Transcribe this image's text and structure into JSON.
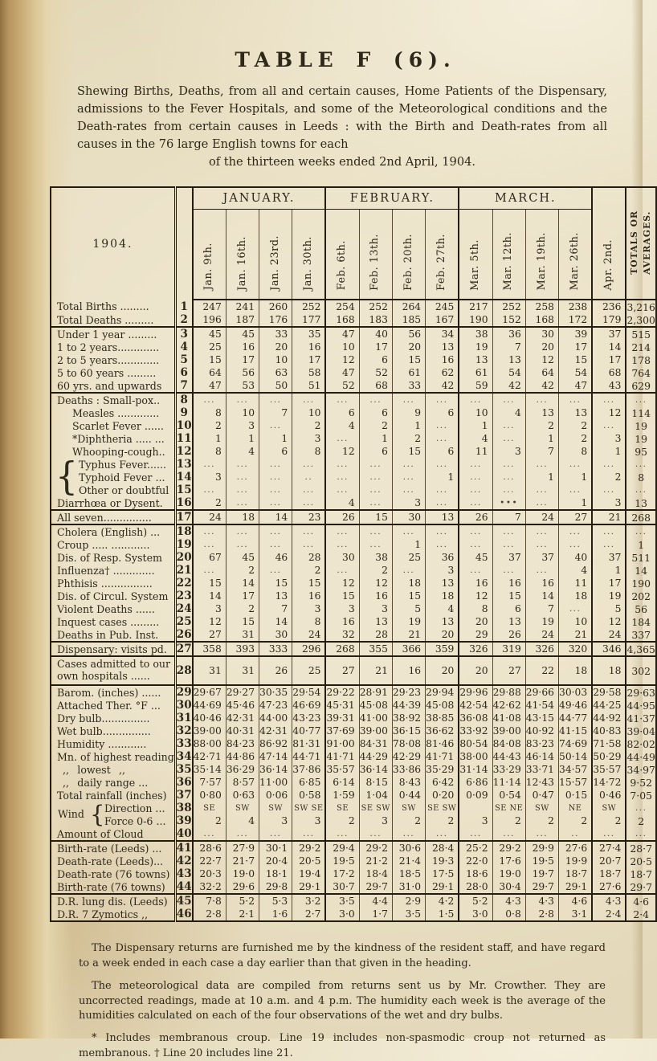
{
  "page": {
    "title": "TABLE F (6).",
    "intro_main": "Shewing Births, Deaths, from all and certain causes, Home Patients of the Dispensary, admissions to the Fever Hospitals, and some of the Meteorological conditions and the Death-rates from certain causes in Leeds : with the Birth and Death-rates from all causes in the 76 large English towns for each",
    "intro_last": "of the thirteen weeks ended 2nd April, 1904.",
    "footnotes": [
      "The Dispensary returns are furnished me by the kindness of the resident staff, and have regard to a week ended in each case a day earlier than that given in the heading.",
      "The meteorological data are compiled from returns sent us by Mr. Crowther.  They are uncorrected readings, made at 10 a.m. and 4 p.m.  The humidity each week is the average of the humidities calculated on each of the four observations of the wet and dry bulbs.",
      "* Includes membranous croup.  Line 19 includes non-spasmodic croup not returned as membranous.  † Line 20 includes line 21."
    ]
  },
  "table": {
    "year_label": "1904.",
    "wind_label": "Wind",
    "month_groups": [
      {
        "label": "JANUARY."
      },
      {
        "label": "FEBRUARY."
      },
      {
        "label": "MARCH."
      }
    ],
    "col_headers": [
      "Jan. 9th.",
      "Jan. 16th.",
      "Jan. 23rd.",
      "Jan. 30th.",
      "Feb. 6th.",
      "Feb. 13th.",
      "Feb. 20th.",
      "Feb. 27th.",
      "Mar. 5th.",
      "Mar. 12th.",
      "Mar. 19th.",
      "Mar. 26th.",
      "Apr. 2nd."
    ],
    "totals_header": "TOTALS OR\nAVERAGES.",
    "rows": [
      {
        "n": "1",
        "label": "Total Births .........",
        "v": [
          "247",
          "241",
          "260",
          "252",
          "254",
          "252",
          "264",
          "245",
          "217",
          "252",
          "258",
          "238",
          "236",
          "3,216"
        ]
      },
      {
        "n": "2",
        "label": "Total Deaths .........",
        "v": [
          "196",
          "187",
          "176",
          "177",
          "168",
          "183",
          "185",
          "167",
          "190",
          "152",
          "168",
          "172",
          "179",
          "2,300"
        ]
      },
      {
        "n": "3",
        "sep": true,
        "label": "Under 1 year .........",
        "v": [
          "45",
          "45",
          "33",
          "35",
          "47",
          "40",
          "56",
          "34",
          "38",
          "36",
          "30",
          "39",
          "37",
          "515"
        ]
      },
      {
        "n": "4",
        "label": "1 to 2 years.............",
        "v": [
          "25",
          "16",
          "20",
          "16",
          "10",
          "17",
          "20",
          "13",
          "19",
          "7",
          "20",
          "17",
          "14",
          "214"
        ]
      },
      {
        "n": "5",
        "label": "2 to 5 years.............",
        "v": [
          "15",
          "17",
          "10",
          "17",
          "12",
          "6",
          "15",
          "16",
          "13",
          "13",
          "12",
          "15",
          "17",
          "178"
        ]
      },
      {
        "n": "6",
        "label": "5 to 60 years .........",
        "v": [
          "64",
          "56",
          "63",
          "58",
          "47",
          "52",
          "61",
          "62",
          "61",
          "54",
          "64",
          "54",
          "68",
          "764"
        ]
      },
      {
        "n": "7",
        "label": "60 yrs. and upwards",
        "v": [
          "47",
          "53",
          "50",
          "51",
          "52",
          "68",
          "33",
          "42",
          "59",
          "42",
          "42",
          "47",
          "43",
          "629"
        ]
      },
      {
        "n": "8",
        "sep": true,
        "label": "Deaths : Small-pox..",
        "v": [
          "...",
          "...",
          "...",
          "...",
          "...",
          "...",
          "...",
          "...",
          "...",
          "...",
          "...",
          "...",
          "...",
          "..."
        ]
      },
      {
        "n": "9",
        "ind": 1,
        "label": "Measles .............",
        "v": [
          "8",
          "10",
          "7",
          "10",
          "6",
          "6",
          "9",
          "6",
          "10",
          "4",
          "13",
          "13",
          "12",
          "114"
        ]
      },
      {
        "n": "10",
        "ind": 1,
        "label": "Scarlet Fever ......",
        "v": [
          "2",
          "3",
          "...",
          "2",
          "4",
          "2",
          "1",
          "...",
          "1",
          "...",
          "2",
          "2",
          "...",
          "19"
        ]
      },
      {
        "n": "11",
        "ind": 1,
        "label": "*Diphtheria ..... ...",
        "v": [
          "1",
          "1",
          "1",
          "3",
          "...",
          "1",
          "2",
          "...",
          "4",
          "...",
          "1",
          "2",
          "3",
          "19"
        ]
      },
      {
        "n": "12",
        "ind": 1,
        "label": "Whooping-cough..",
        "v": [
          "8",
          "4",
          "6",
          "8",
          "12",
          "6",
          "15",
          "6",
          "11",
          "3",
          "7",
          "8",
          "1",
          "95"
        ]
      },
      {
        "n": "13",
        "ind": 2,
        "brace3": true,
        "label": "Typhus Fever......",
        "v": [
          "...",
          "...",
          "...",
          "...",
          "...",
          "...",
          "...",
          "...",
          "...",
          "...",
          "...",
          "...",
          "...",
          "..."
        ]
      },
      {
        "n": "14",
        "ind": 2,
        "label": "Typhoid Fever ...",
        "v": [
          "3",
          "...",
          "...",
          "..",
          "...",
          "...",
          "...",
          "1",
          "...",
          "...",
          "1",
          "1",
          "2",
          "8"
        ]
      },
      {
        "n": "15",
        "ind": 2,
        "label": "Other or doubtful",
        "v": [
          "...",
          "...",
          "...",
          "...",
          "...",
          "...",
          "...",
          "...",
          "...",
          "...",
          "...",
          "...",
          "...",
          "..."
        ]
      },
      {
        "n": "16",
        "label": "Diarrhœa or Dysent.",
        "v": [
          "2",
          "...",
          "...",
          "...",
          "4",
          "...",
          "3",
          "...",
          "...",
          "•••",
          "...",
          "1",
          "3",
          "13"
        ]
      },
      {
        "n": "17",
        "sep": true,
        "label": "All seven...............",
        "v": [
          "24",
          "18",
          "14",
          "23",
          "26",
          "15",
          "30",
          "13",
          "26",
          "7",
          "24",
          "27",
          "21",
          "268"
        ]
      },
      {
        "n": "18",
        "sep": true,
        "label": "Cholera (English) ...",
        "v": [
          "...",
          "...",
          "...",
          "...",
          "...",
          "...",
          "...",
          "...",
          "...",
          "...",
          "...",
          "...",
          "...",
          "..."
        ]
      },
      {
        "n": "19",
        "label": "Croup ..... ............",
        "v": [
          "...",
          "...",
          "...",
          "...",
          "...",
          "...",
          "1",
          "...",
          "...",
          "...",
          "...",
          "...",
          "...",
          "1"
        ]
      },
      {
        "n": "20",
        "label": "Dis. of Resp. System",
        "v": [
          "67",
          "45",
          "46",
          "28",
          "30",
          "38",
          "25",
          "36",
          "45",
          "37",
          "37",
          "40",
          "37",
          "511"
        ]
      },
      {
        "n": "21",
        "label": "Influenza† .............",
        "v": [
          "...",
          "2",
          "...",
          "2",
          "...",
          "2",
          "...",
          "3",
          "...",
          "...",
          "...",
          "4",
          "1",
          "14"
        ]
      },
      {
        "n": "22",
        "label": "Phthisis ................",
        "v": [
          "15",
          "14",
          "15",
          "15",
          "12",
          "12",
          "18",
          "13",
          "16",
          "16",
          "16",
          "11",
          "17",
          "190"
        ]
      },
      {
        "n": "23",
        "label": "Dis. of Circul. System",
        "v": [
          "14",
          "17",
          "13",
          "16",
          "15",
          "16",
          "15",
          "18",
          "12",
          "15",
          "14",
          "18",
          "19",
          "202"
        ]
      },
      {
        "n": "24",
        "label": "Violent Deaths ......",
        "v": [
          "3",
          "2",
          "7",
          "3",
          "3",
          "3",
          "5",
          "4",
          "8",
          "6",
          "7",
          "...",
          "5",
          "56"
        ]
      },
      {
        "n": "25",
        "label": "Inquest cases .........",
        "v": [
          "12",
          "15",
          "14",
          "8",
          "16",
          "13",
          "19",
          "13",
          "20",
          "13",
          "19",
          "10",
          "12",
          "184"
        ]
      },
      {
        "n": "26",
        "label": "Deaths in Pub. Inst.",
        "v": [
          "27",
          "31",
          "30",
          "24",
          "32",
          "28",
          "21",
          "20",
          "29",
          "26",
          "24",
          "21",
          "24",
          "337"
        ]
      },
      {
        "n": "27",
        "sep": true,
        "label": "Dispensary: visits pd.",
        "v": [
          "358",
          "393",
          "333",
          "296",
          "268",
          "355",
          "366",
          "359",
          "326",
          "319",
          "326",
          "320",
          "346",
          "4,365"
        ]
      },
      {
        "n": "28",
        "sep": true,
        "wrap": true,
        "label": "Cases admitted to our own hospitals ......",
        "v": [
          "31",
          "31",
          "26",
          "25",
          "27",
          "21",
          "16",
          "20",
          "20",
          "27",
          "22",
          "18",
          "18",
          "302"
        ]
      },
      {
        "n": "29",
        "sep": true,
        "label": "Barom. (inches) ......",
        "v": [
          "29·67",
          "29·27",
          "30·35",
          "29·54",
          "29·22",
          "28·91",
          "29·23",
          "29·94",
          "29·96",
          "29·88",
          "29·66",
          "30·03",
          "29·58",
          "29·63"
        ]
      },
      {
        "n": "30",
        "label": "Attached Ther. °F ...",
        "v": [
          "44·69",
          "45·46",
          "47·23",
          "46·69",
          "45·31",
          "45·08",
          "44·39",
          "45·08",
          "42·54",
          "42·62",
          "41·54",
          "49·46",
          "44·25",
          "44·95"
        ]
      },
      {
        "n": "31",
        "label": "Dry bulb...............",
        "v": [
          "40·46",
          "42·31",
          "44·00",
          "43·23",
          "39·31",
          "41·00",
          "38·92",
          "38·85",
          "36·08",
          "41·08",
          "43·15",
          "44·77",
          "44·92",
          "41·37"
        ]
      },
      {
        "n": "32",
        "label": "Wet bulb...............",
        "v": [
          "39·00",
          "40·31",
          "42·31",
          "40·77",
          "37·69",
          "39·00",
          "36·15",
          "36·62",
          "33·92",
          "39·00",
          "40·92",
          "41·15",
          "40·83",
          "39·04"
        ]
      },
      {
        "n": "33",
        "label": "Humidity ............",
        "v": [
          "88·00",
          "84·23",
          "86·92",
          "81·31",
          "91·00",
          "84·31",
          "78·08",
          "81·46",
          "80·54",
          "84·08",
          "83·23",
          "74·69",
          "71·58",
          "82·02"
        ]
      },
      {
        "n": "34",
        "label": "Mn. of highest reading",
        "v": [
          "42·71",
          "44·86",
          "47·14",
          "44·71",
          "41·71",
          "44·29",
          "42·29",
          "41·71",
          "38·00",
          "44·43",
          "46·14",
          "50·14",
          "50·29",
          "44·49"
        ]
      },
      {
        "n": "35",
        "ind": 3,
        "label": ",,  lowest  ,,",
        "v": [
          "35·14",
          "36·29",
          "36·14",
          "37·86",
          "35·57",
          "36·14",
          "33·86",
          "35·29",
          "31·14",
          "33·29",
          "33·71",
          "34·57",
          "35·57",
          "34·97"
        ]
      },
      {
        "n": "36",
        "ind": 3,
        "label": ",,  daily range ...",
        "v": [
          "7·57",
          "8·57",
          "11·00",
          "6·85",
          "6·14",
          "8·15",
          "8·43",
          "6·42",
          "6·86",
          "11·14",
          "12·43",
          "15·57",
          "14·72",
          "9·52"
        ]
      },
      {
        "n": "37",
        "label": "Total rainfall (inches)",
        "v": [
          "0·80",
          "0·63",
          "0·06",
          "0·58",
          "1·59",
          "1·04",
          "0·44",
          "0·20",
          "0·09",
          "0·54",
          "0·47",
          "0·15",
          "0·46",
          "7·05"
        ]
      },
      {
        "n": "38",
        "ind": 4,
        "wind": true,
        "label": "Direction ...",
        "v": [
          "SE",
          "SW",
          "SW",
          "SW SE",
          "SE",
          "SE SW",
          "SW",
          "SE SW",
          "",
          "SE NE",
          "SW",
          "NE",
          "SW",
          "..."
        ]
      },
      {
        "n": "39",
        "ind": 4,
        "label": "Force 0-6 ...",
        "v": [
          "2",
          "4",
          "3",
          "3",
          "2",
          "3",
          "2",
          "2",
          "3",
          "2",
          "2",
          "2",
          "2",
          "2"
        ]
      },
      {
        "n": "40",
        "label": "Amount of Cloud",
        "v": [
          "...",
          "...",
          "...",
          "...",
          "...",
          "...",
          "...",
          "...",
          "...",
          "...",
          "...",
          "..",
          "...",
          "..."
        ]
      },
      {
        "n": "41",
        "sep": true,
        "label": "Birth-rate (Leeds) ...",
        "v": [
          "28·6",
          "27·9",
          "30·1",
          "29·2",
          "29·4",
          "29·2",
          "30·6",
          "28·4",
          "25·2",
          "29·2",
          "29·9",
          "27·6",
          "27·4",
          "28·7"
        ]
      },
      {
        "n": "42",
        "label": "Death-rate (Leeds)...",
        "v": [
          "22·7",
          "21·7",
          "20·4",
          "20·5",
          "19·5",
          "21·2",
          "21·4",
          "19·3",
          "22·0",
          "17·6",
          "19·5",
          "19·9",
          "20·7",
          "20·5"
        ]
      },
      {
        "n": "43",
        "label": "Death-rate (76 towns)",
        "v": [
          "20·3",
          "19·0",
          "18·1",
          "19·4",
          "17·2",
          "18·4",
          "18·5",
          "17·5",
          "18·6",
          "19·0",
          "19·7",
          "18·7",
          "18·7",
          "18·7"
        ]
      },
      {
        "n": "44",
        "label": "Birth-rate (76 towns)",
        "v": [
          "32·2",
          "29·6",
          "29·8",
          "29·1",
          "30·7",
          "29·7",
          "31·0",
          "29·1",
          "28·0",
          "30·4",
          "29·7",
          "29·1",
          "27·6",
          "29·7"
        ]
      },
      {
        "n": "45",
        "sep": true,
        "label": "D.R. lung dis. (Leeds)",
        "v": [
          "7·8",
          "5·2",
          "5·3",
          "3·2",
          "3·5",
          "4·4",
          "2·9",
          "4·2",
          "5·2",
          "4·3",
          "4·3",
          "4·6",
          "4·3",
          "4·6"
        ]
      },
      {
        "n": "46",
        "label": "D.R. 7 Zymotics ,,",
        "v": [
          "2·8",
          "2·1",
          "1·6",
          "2·7",
          "3·0",
          "1·7",
          "3·5",
          "1·5",
          "3·0",
          "0·8",
          "2·8",
          "3·1",
          "2·4",
          "2·4"
        ]
      }
    ]
  }
}
